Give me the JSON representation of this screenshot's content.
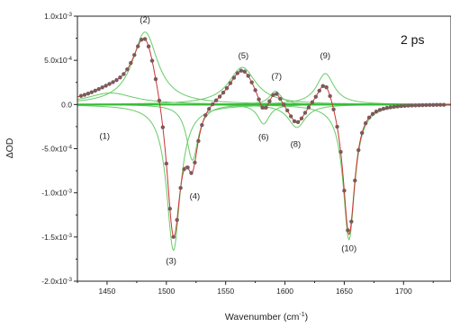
{
  "chart_data": {
    "type": "line",
    "xlabel": "Wavenumber (cm",
    "xlabel_sup": "-1",
    "xlabel_close": ")",
    "ylabel": "ΔOD",
    "xlim": [
      1425,
      1740
    ],
    "ylim": [
      -0.002,
      0.001
    ],
    "x_ticks": [
      {
        "value": 1450,
        "label": "1450"
      },
      {
        "value": 1500,
        "label": "1500"
      },
      {
        "value": 1550,
        "label": "1550"
      },
      {
        "value": 1600,
        "label": "1600"
      },
      {
        "value": 1650,
        "label": "1650"
      },
      {
        "value": 1700,
        "label": "1700"
      }
    ],
    "y_ticks": [
      {
        "value": 0.001,
        "mant": "1.0x10",
        "exp": "-3"
      },
      {
        "value": 0.0005,
        "mant": "5.0x10",
        "exp": "-4"
      },
      {
        "value": 0.0,
        "mant": "0.0",
        "exp": ""
      },
      {
        "value": -0.0005,
        "mant": "-5.0x10",
        "exp": "-4"
      },
      {
        "value": -0.001,
        "mant": "-1.0x10",
        "exp": "-3"
      },
      {
        "value": -0.0015,
        "mant": "-1.5x10",
        "exp": "-3"
      },
      {
        "value": -0.002,
        "mant": "-2.0x10",
        "exp": "-3"
      }
    ],
    "annotation": "2 ps",
    "colors": {
      "data_points": "#7a5a5a",
      "fit_line": "#cc3333",
      "components": "#66cc66",
      "baseline": "#33bb33"
    },
    "components": [
      {
        "label": "(1)",
        "center": 1453,
        "amplitude": 0.00013,
        "width": 25,
        "label_x": 1448,
        "label_y": -0.00039
      },
      {
        "label": "(2)",
        "center": 1482,
        "amplitude": 0.00082,
        "width": 13,
        "label_x": 1482,
        "label_y": 0.00093
      },
      {
        "label": "(3)",
        "center": 1506,
        "amplitude": -0.00165,
        "width": 7,
        "label_x": 1504,
        "label_y": -0.0018
      },
      {
        "label": "(4)",
        "center": 1522,
        "amplitude": -0.00063,
        "width": 6,
        "label_x": 1524,
        "label_y": -0.00107
      },
      {
        "label": "(5)",
        "center": 1564,
        "amplitude": 0.00042,
        "width": 14,
        "label_x": 1565,
        "label_y": 0.00052
      },
      {
        "label": "(6)",
        "center": 1582,
        "amplitude": -0.00022,
        "width": 6,
        "label_x": 1582,
        "label_y": -0.0004
      },
      {
        "label": "(7)",
        "center": 1592,
        "amplitude": 0.00015,
        "width": 6,
        "label_x": 1593,
        "label_y": 0.00029
      },
      {
        "label": "(8)",
        "center": 1610,
        "amplitude": -0.00026,
        "width": 9,
        "label_x": 1609,
        "label_y": -0.00048
      },
      {
        "label": "(9)",
        "center": 1634,
        "amplitude": 0.00035,
        "width": 9,
        "label_x": 1634,
        "label_y": 0.00052
      },
      {
        "label": "(10)",
        "center": 1654,
        "amplitude": -0.00153,
        "width": 6,
        "label_x": 1654,
        "label_y": -0.00166
      }
    ],
    "points_x": [
      1428,
      1431,
      1434,
      1437,
      1440,
      1443,
      1446,
      1449,
      1452,
      1455,
      1458,
      1461,
      1464,
      1467,
      1470,
      1473,
      1476,
      1479,
      1482,
      1485,
      1488,
      1491,
      1494,
      1497,
      1500,
      1503,
      1506,
      1509,
      1512,
      1515,
      1518,
      1521,
      1524,
      1527,
      1530,
      1533,
      1536,
      1539,
      1542,
      1545,
      1548,
      1551,
      1554,
      1557,
      1560,
      1563,
      1566,
      1569,
      1572,
      1575,
      1578,
      1581,
      1584,
      1587,
      1590,
      1593,
      1596,
      1599,
      1602,
      1605,
      1608,
      1611,
      1614,
      1617,
      1620,
      1623,
      1626,
      1629,
      1632,
      1635,
      1638,
      1641,
      1644,
      1647,
      1650,
      1653,
      1656,
      1659,
      1662,
      1665,
      1668,
      1671,
      1674,
      1677,
      1680,
      1683,
      1686,
      1689,
      1692,
      1695,
      1698,
      1701,
      1704,
      1707,
      1710,
      1713,
      1716,
      1719,
      1722,
      1725,
      1728,
      1731,
      1734
    ]
  }
}
